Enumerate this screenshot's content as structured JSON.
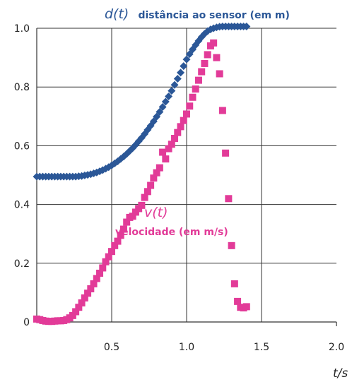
{
  "chart_data": {
    "type": "scatter",
    "xlim": [
      0,
      2.0
    ],
    "ylim": [
      0,
      1.0
    ],
    "x_ticks": [
      {
        "value": 0.5,
        "label": "0.5"
      },
      {
        "value": 1.0,
        "label": "1.0"
      },
      {
        "value": 1.5,
        "label": "1.5"
      },
      {
        "value": 2.0,
        "label": "2.0"
      }
    ],
    "y_ticks": [
      {
        "value": 0,
        "label": "0"
      },
      {
        "value": 0.2,
        "label": "0.2"
      },
      {
        "value": 0.4,
        "label": "0.4"
      },
      {
        "value": 0.6,
        "label": "0.6"
      },
      {
        "value": 0.8,
        "label": "0.8"
      },
      {
        "value": 1.0,
        "label": "1.0"
      }
    ],
    "xlabel": "t/s",
    "grid": true,
    "series": [
      {
        "name_symbol": "d(t)",
        "name_desc": "distância ao sensor (em m)",
        "color": "#2b5797",
        "marker": "diamond",
        "x": [
          0.0,
          0.02,
          0.04,
          0.06,
          0.08,
          0.1,
          0.12,
          0.14,
          0.16,
          0.18,
          0.2,
          0.22,
          0.24,
          0.26,
          0.28,
          0.3,
          0.32,
          0.34,
          0.36,
          0.38,
          0.4,
          0.42,
          0.44,
          0.46,
          0.48,
          0.5,
          0.52,
          0.54,
          0.56,
          0.58,
          0.6,
          0.62,
          0.64,
          0.66,
          0.68,
          0.7,
          0.72,
          0.74,
          0.76,
          0.78,
          0.8,
          0.82,
          0.84,
          0.86,
          0.88,
          0.9,
          0.92,
          0.94,
          0.96,
          0.98,
          1.0,
          1.02,
          1.04,
          1.06,
          1.08,
          1.1,
          1.12,
          1.14,
          1.16,
          1.18,
          1.2,
          1.22,
          1.24,
          1.26,
          1.28,
          1.3,
          1.32,
          1.34,
          1.36,
          1.38,
          1.4
        ],
        "y": [
          0.495,
          0.495,
          0.495,
          0.495,
          0.495,
          0.495,
          0.495,
          0.495,
          0.495,
          0.495,
          0.495,
          0.495,
          0.495,
          0.495,
          0.496,
          0.497,
          0.499,
          0.501,
          0.503,
          0.506,
          0.509,
          0.513,
          0.517,
          0.522,
          0.527,
          0.533,
          0.54,
          0.547,
          0.555,
          0.563,
          0.572,
          0.582,
          0.592,
          0.603,
          0.615,
          0.627,
          0.64,
          0.654,
          0.668,
          0.683,
          0.699,
          0.715,
          0.732,
          0.75,
          0.768,
          0.787,
          0.807,
          0.828,
          0.849,
          0.871,
          0.894,
          0.912,
          0.928,
          0.943,
          0.957,
          0.97,
          0.981,
          0.99,
          0.996,
          1.0,
          1.003,
          1.005,
          1.006,
          1.006,
          1.006,
          1.006,
          1.006,
          1.006,
          1.006,
          1.006,
          1.006
        ]
      },
      {
        "name_symbol": "v(t)",
        "name_desc": "velocidade (em m/s)",
        "color": "#e23b98",
        "marker": "square",
        "x": [
          0.0,
          0.02,
          0.04,
          0.06,
          0.08,
          0.1,
          0.12,
          0.14,
          0.16,
          0.18,
          0.2,
          0.22,
          0.24,
          0.26,
          0.28,
          0.3,
          0.32,
          0.34,
          0.36,
          0.38,
          0.4,
          0.42,
          0.44,
          0.46,
          0.48,
          0.5,
          0.52,
          0.54,
          0.56,
          0.58,
          0.6,
          0.62,
          0.64,
          0.66,
          0.68,
          0.7,
          0.72,
          0.74,
          0.76,
          0.78,
          0.8,
          0.82,
          0.84,
          0.86,
          0.88,
          0.9,
          0.92,
          0.94,
          0.96,
          0.98,
          1.0,
          1.02,
          1.04,
          1.06,
          1.08,
          1.1,
          1.12,
          1.14,
          1.16,
          1.18,
          1.2,
          1.22,
          1.24,
          1.26,
          1.28,
          1.3,
          1.32,
          1.34,
          1.36,
          1.38,
          1.4
        ],
        "y": [
          0.01,
          0.008,
          0.005,
          0.003,
          0.002,
          0.002,
          0.003,
          0.004,
          0.004,
          0.005,
          0.008,
          0.014,
          0.022,
          0.035,
          0.05,
          0.065,
          0.082,
          0.098,
          0.113,
          0.13,
          0.148,
          0.166,
          0.184,
          0.205,
          0.222,
          0.24,
          0.26,
          0.275,
          0.295,
          0.316,
          0.34,
          0.356,
          0.36,
          0.374,
          0.386,
          0.397,
          0.424,
          0.444,
          0.465,
          0.49,
          0.508,
          0.525,
          0.578,
          0.555,
          0.59,
          0.605,
          0.625,
          0.645,
          0.665,
          0.686,
          0.708,
          0.735,
          0.765,
          0.793,
          0.823,
          0.852,
          0.88,
          0.91,
          0.94,
          0.95,
          0.9,
          0.845,
          0.72,
          0.575,
          0.42,
          0.26,
          0.13,
          0.07,
          0.05,
          0.048,
          0.052
        ]
      }
    ]
  }
}
